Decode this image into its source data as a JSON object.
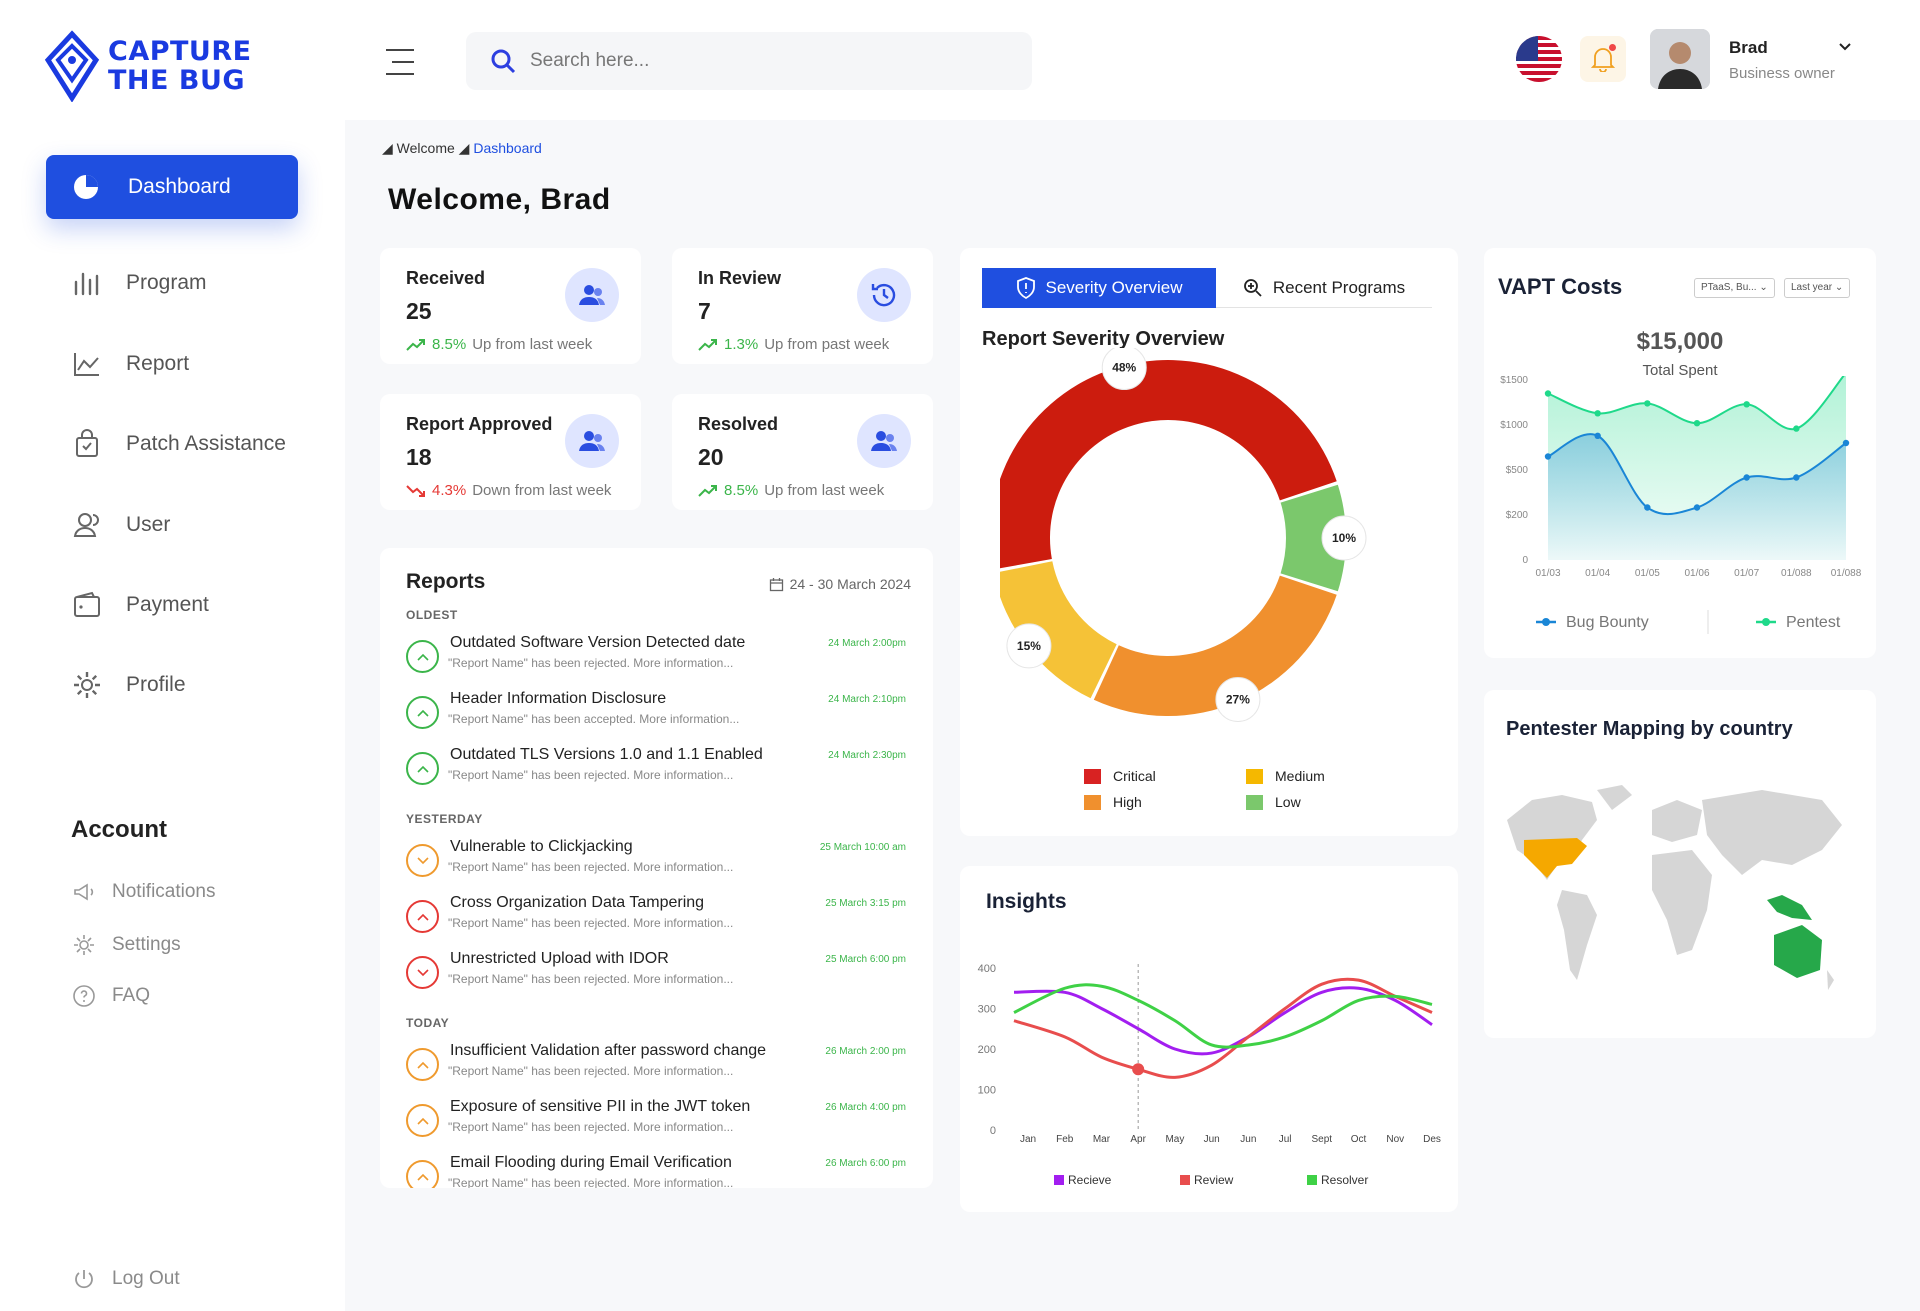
{
  "app": {
    "logo_line1": "CAPTURE",
    "logo_line2": "THE BUG"
  },
  "nav": {
    "active": "Dashboard",
    "items": [
      "Program",
      "Report",
      "Patch Assistance",
      "User",
      "Payment",
      "Profile"
    ]
  },
  "account": {
    "title": "Account",
    "items": [
      "Notifications",
      "Settings",
      "FAQ"
    ],
    "logout": "Log Out"
  },
  "topbar": {
    "search_placeholder": "Search here...",
    "user_name": "Brad",
    "user_role": "Business owner"
  },
  "breadcrumb": {
    "root": "Welcome",
    "current": "Dashboard"
  },
  "welcome": "Welcome, Brad",
  "stats": [
    {
      "title": "Received",
      "value": "25",
      "trend_pct": "8.5%",
      "trend_text": "Up from last week",
      "dir": "up"
    },
    {
      "title": "In Review",
      "value": "7",
      "trend_pct": "1.3%",
      "trend_text": "Up from past week",
      "dir": "up"
    },
    {
      "title": "Report Approved",
      "value": "18",
      "trend_pct": "4.3%",
      "trend_text": "Down from last week",
      "dir": "down"
    },
    {
      "title": "Resolved",
      "value": "20",
      "trend_pct": "8.5%",
      "trend_text": "Up from last week",
      "dir": "up"
    }
  ],
  "reports": {
    "title": "Reports",
    "date_range": "24 - 30 March 2024",
    "groups": [
      {
        "label": "OLDEST",
        "items": [
          {
            "title": "Outdated Software Version Detected date",
            "sub": "\"Report Name\" has been rejected. More information...",
            "date": "24 March 2:00pm",
            "color": "#3bb54a",
            "dir": "up"
          },
          {
            "title": "Header Information Disclosure",
            "sub": "\"Report Name\" has been accepted. More information...",
            "date": "24 March 2:10pm",
            "color": "#3bb54a",
            "dir": "up"
          },
          {
            "title": "Outdated TLS Versions 1.0 and 1.1 Enabled",
            "sub": "\"Report Name\" has been rejected. More information...",
            "date": "24 March 2:30pm",
            "color": "#3bb54a",
            "dir": "up"
          }
        ]
      },
      {
        "label": "YESTERDAY",
        "items": [
          {
            "title": "Vulnerable to Clickjacking",
            "sub": "\"Report Name\" has been rejected. More information...",
            "date": "25 March 10:00 am",
            "color": "#ef9a2e",
            "dir": "down"
          },
          {
            "title": "Cross Organization Data Tampering",
            "sub": "\"Report Name\" has been rejected. More information...",
            "date": "25 March 3:15 pm",
            "color": "#e53935",
            "dir": "up"
          },
          {
            "title": "Unrestricted Upload with IDOR",
            "sub": "\"Report Name\" has been rejected. More information...",
            "date": "25 March 6:00 pm",
            "color": "#e53935",
            "dir": "down"
          }
        ]
      },
      {
        "label": "TODAY",
        "items": [
          {
            "title": "Insufficient Validation after password change",
            "sub": "\"Report Name\" has been rejected. More information...",
            "date": "26 March 2:00 pm",
            "color": "#ef9a2e",
            "dir": "up"
          },
          {
            "title": "Exposure of sensitive PII in the JWT token",
            "sub": "\"Report Name\" has been rejected. More information...",
            "date": "26 March 4:00 pm",
            "color": "#ef9a2e",
            "dir": "up"
          },
          {
            "title": "Email Flooding during Email Verification",
            "sub": "\"Report Name\" has been rejected. More information...",
            "date": "26 March 6:00 pm",
            "color": "#ef9a2e",
            "dir": "up"
          }
        ]
      }
    ]
  },
  "severity": {
    "tab_active": "Severity Overview",
    "tab_other": "Recent Programs",
    "title": "Report Severity Overview"
  },
  "vapt": {
    "title": "VAPT Costs",
    "filter1": "PTaaS, Bu...",
    "filter2": "Last year",
    "total": "$15,000",
    "total_label": "Total Spent"
  },
  "map": {
    "title": "Pentester Mapping by country"
  },
  "insights": {
    "title": "Insights"
  },
  "chart_data": [
    {
      "type": "pie",
      "title": "Report Severity Overview",
      "categories": [
        "Critical",
        "Low",
        "High",
        "Medium"
      ],
      "values": [
        48,
        10,
        27,
        15
      ],
      "colors": [
        "#cc1c0e",
        "#7bc86c",
        "#f0902e",
        "#f5c237"
      ],
      "legend": [
        "Critical",
        "Medium",
        "High",
        "Low"
      ],
      "legend_colors": [
        "#d82222",
        "#f5b800",
        "#f0902e",
        "#7bc86c"
      ],
      "labels": [
        "48%",
        "10%",
        "27%",
        "15%"
      ]
    },
    {
      "type": "area",
      "title": "VAPT Costs",
      "categories": [
        "01/03",
        "01/04",
        "01/05",
        "01/06",
        "01/07",
        "01/088",
        "01/088"
      ],
      "y_tick_labels": [
        "0",
        "$200",
        "$500",
        "$1000",
        "$1500"
      ],
      "series": [
        {
          "name": "Pentest",
          "color": "#1fd98a",
          "values": [
            1350,
            1130,
            1240,
            1020,
            1230,
            960,
            1580
          ]
        },
        {
          "name": "Bug Bounty",
          "color": "#1a86d6",
          "values": [
            650,
            880,
            250,
            250,
            450,
            450,
            800
          ]
        }
      ]
    },
    {
      "type": "line",
      "title": "Insights",
      "categories": [
        "Jan",
        "Feb",
        "Mar",
        "Apr",
        "May",
        "Jun",
        "Jun",
        "Jul",
        "Sept",
        "Oct",
        "Nov",
        "Des"
      ],
      "ylim": [
        0,
        400
      ],
      "y_ticks": [
        "0",
        "100",
        "200",
        "300",
        "400"
      ],
      "series": [
        {
          "name": "Recieve",
          "color": "#a21ef0",
          "values": [
            340,
            340,
            300,
            250,
            200,
            190,
            230,
            290,
            340,
            350,
            320,
            260
          ]
        },
        {
          "name": "Review",
          "color": "#e84d4d",
          "values": [
            270,
            230,
            180,
            150,
            130,
            160,
            230,
            300,
            360,
            370,
            330,
            290
          ]
        },
        {
          "name": "Resolved",
          "color": "#3fd146",
          "values": [
            290,
            350,
            355,
            320,
            270,
            210,
            210,
            230,
            270,
            320,
            330,
            310
          ]
        }
      ],
      "legend": [
        "Recieve",
        "Review",
        "Resolver"
      ]
    }
  ]
}
